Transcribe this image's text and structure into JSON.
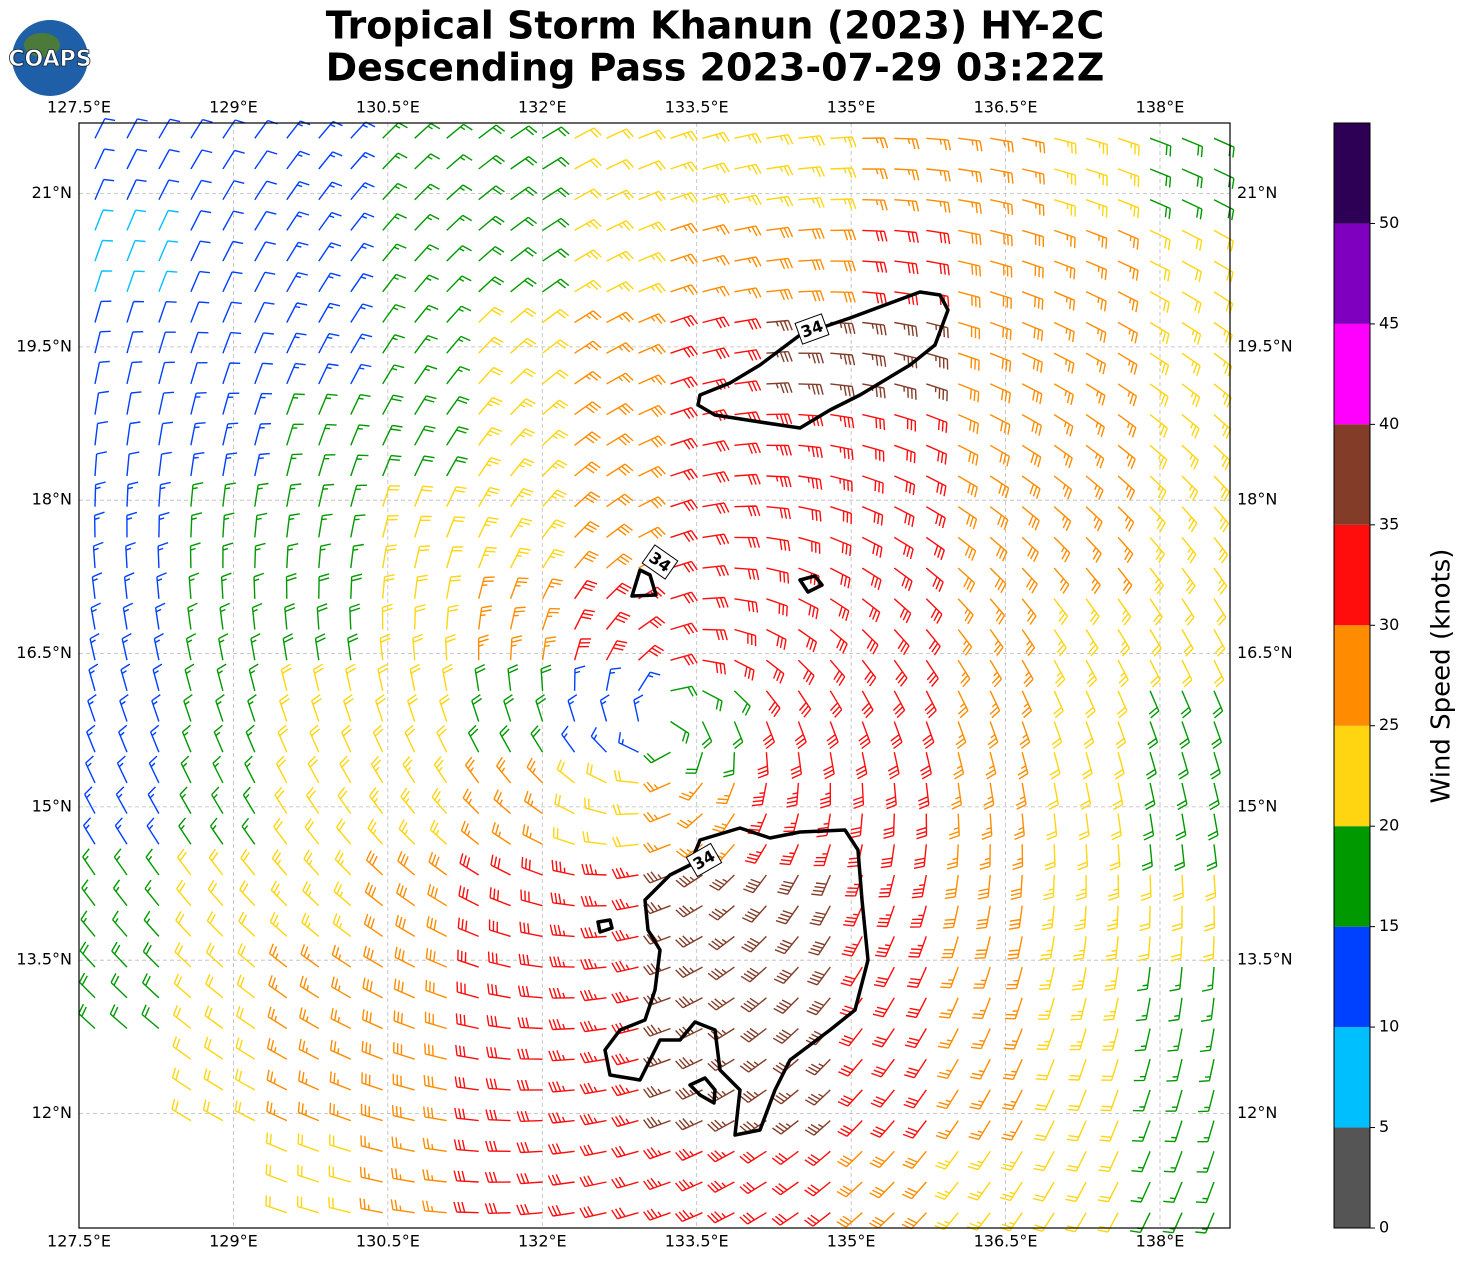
{
  "header": {
    "logo": "COAPS",
    "title_lines": [
      "Tropical Storm Khanun (2023) HY-2C",
      "Descending Pass 2023-07-29 03:22Z"
    ]
  },
  "map": {
    "type": "wind-barbs",
    "lonlim": [
      127.5,
      138.68
    ],
    "latlim": [
      10.88,
      21.69
    ],
    "grid": true,
    "lonticks": [
      {
        "value": 127.5,
        "label": "127.5°E"
      },
      {
        "value": 129,
        "label": "129°E"
      },
      {
        "value": 130.5,
        "label": "130.5°E"
      },
      {
        "value": 132,
        "label": "132°E"
      },
      {
        "value": 133.5,
        "label": "133.5°E"
      },
      {
        "value": 135,
        "label": "135°E"
      },
      {
        "value": 136.5,
        "label": "136.5°E"
      },
      {
        "value": 138,
        "label": "138°E"
      }
    ],
    "latticks": [
      {
        "value": 12,
        "label": "12°N"
      },
      {
        "value": 13.5,
        "label": "13.5°N"
      },
      {
        "value": 15,
        "label": "15°N"
      },
      {
        "value": 16.5,
        "label": "16.5°N"
      },
      {
        "value": 18,
        "label": "18°N"
      },
      {
        "value": 19.5,
        "label": "19.5°N"
      },
      {
        "value": 21,
        "label": "21°N"
      }
    ],
    "wind_speed_grid": [
      [
        10,
        12,
        13,
        17,
        19,
        22,
        23,
        24,
        25,
        26,
        24,
        19
      ],
      [
        8,
        11,
        13,
        16,
        19,
        23,
        27,
        28,
        30,
        28,
        25,
        22
      ],
      [
        11,
        12,
        14,
        17,
        22,
        25,
        31,
        37,
        36,
        29,
        26,
        23
      ],
      [
        12,
        13,
        16,
        19,
        23,
        28,
        32,
        33,
        32,
        29,
        27,
        24
      ],
      [
        13,
        15,
        17,
        21,
        24,
        28,
        31,
        32,
        31,
        28,
        26,
        23
      ],
      [
        14,
        16,
        19,
        22,
        25,
        30,
        31,
        32,
        31,
        27,
        24,
        21
      ],
      [
        14,
        17,
        20,
        22,
        18,
        13,
        18,
        30,
        31,
        27,
        22,
        18
      ],
      [
        14,
        16,
        20,
        24,
        27,
        22,
        26,
        33,
        30,
        26,
        22,
        19
      ],
      [
        17,
        21,
        24,
        28,
        32,
        33,
        37,
        39,
        33,
        28,
        24,
        20
      ],
      [
        18,
        22,
        25,
        29,
        32,
        34,
        37,
        38,
        32,
        27,
        23,
        16
      ],
      [
        null,
        22,
        25,
        28,
        31,
        33,
        35,
        36,
        31,
        27,
        22,
        16
      ],
      [
        null,
        null,
        22,
        26,
        30,
        32,
        33,
        31,
        28,
        24,
        20,
        17
      ]
    ],
    "contour_labels": [
      34,
      34,
      34
    ]
  },
  "colorbar": {
    "label": "Wind Speed (knots)",
    "lim": [
      0,
      55
    ],
    "ticks": [
      0,
      5,
      10,
      15,
      20,
      25,
      30,
      35,
      40,
      45,
      50
    ],
    "bounds": [
      0,
      5,
      10,
      15,
      20,
      25,
      30,
      35,
      40,
      45,
      50,
      55
    ],
    "colors": [
      "#555555",
      "#00bfff",
      "#0040ff",
      "#009900",
      "#ffd511",
      "#ff8c00",
      "#ff0d0d",
      "#833c28",
      "#ff00ff",
      "#8000c0",
      "#2d0055"
    ]
  }
}
